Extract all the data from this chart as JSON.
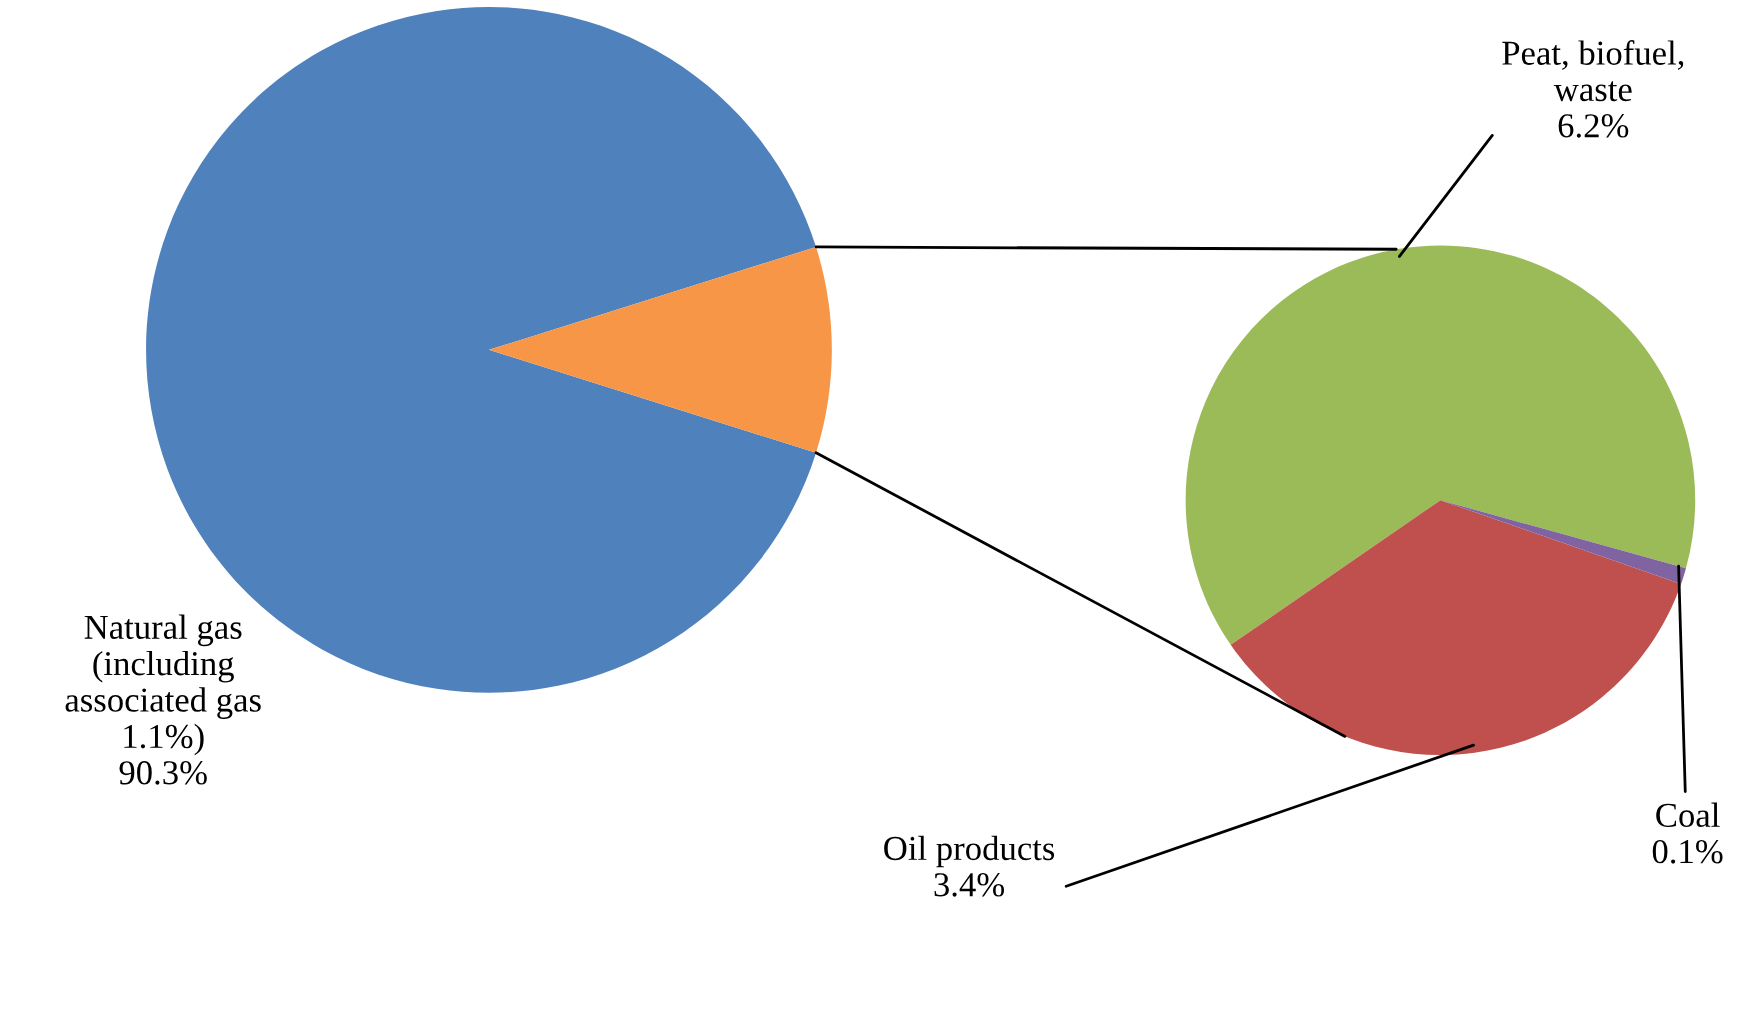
{
  "chart_data": [
    {
      "type": "pie",
      "categories": [
        "Natural gas\n(including\nassociated gas\n1.1%)",
        null
      ],
      "values": [
        90.3,
        9.7
      ],
      "colors": [
        "#4f81bd",
        "#f79646"
      ],
      "value_labels": [
        "90.3%",
        null
      ]
    },
    {
      "type": "pie",
      "categories": [
        "Peat, biofuel,\nwaste",
        "Oil products",
        "Coal"
      ],
      "values": [
        6.2,
        3.4,
        0.1
      ],
      "colors": [
        "#9bbb59",
        "#c0504d",
        "#8064a2"
      ],
      "value_labels": [
        "6.2%",
        "3.4%",
        "0.1%"
      ]
    }
  ]
}
